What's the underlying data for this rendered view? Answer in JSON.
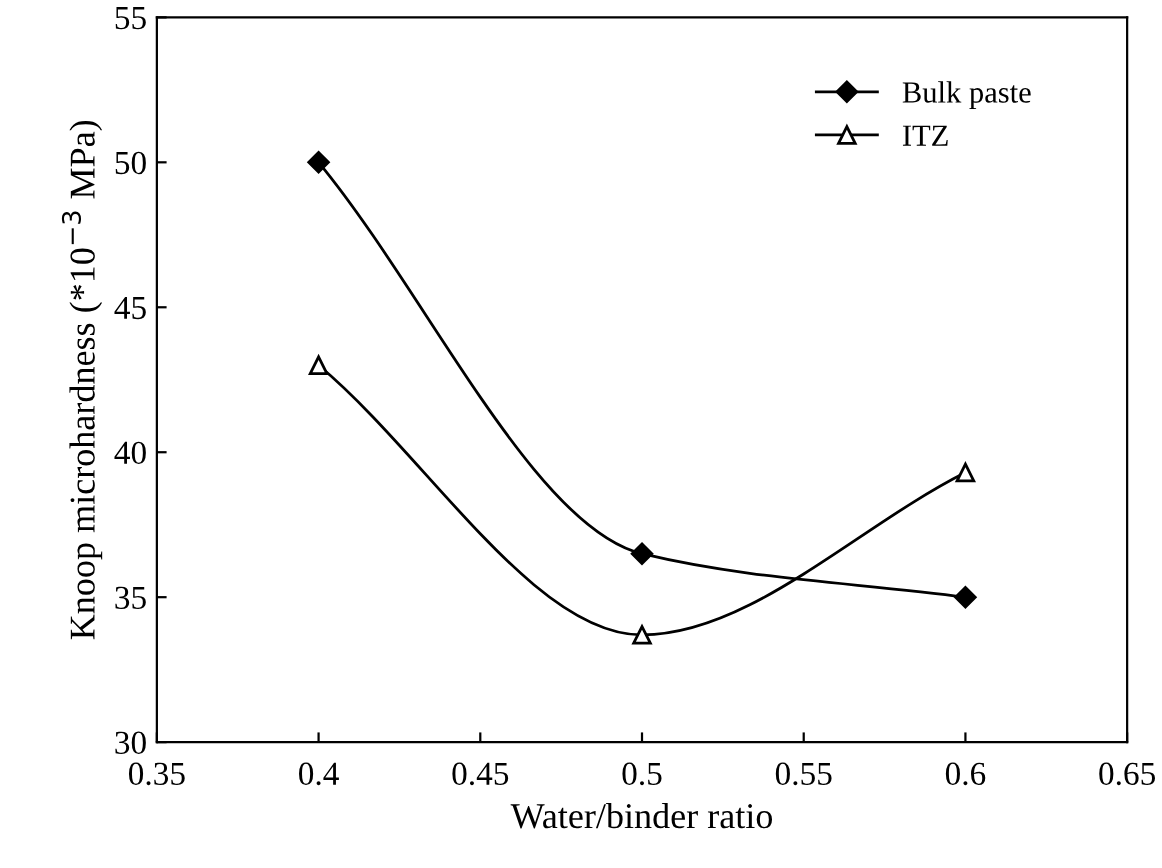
{
  "chart_data": {
    "type": "line",
    "xlabel": "Water/binder ratio",
    "ylabel": "Knoop microhardness (*10$^{−3}$ MPa)",
    "x": [
      0.4,
      0.5,
      0.6
    ],
    "series": [
      {
        "name": "Bulk paste",
        "color": "#000000",
        "marker": "diamond",
        "values": [
          50,
          36.5,
          35
        ]
      },
      {
        "name": "ITZ",
        "color": "#000000",
        "marker": "triangle",
        "values": [
          43,
          33.7,
          39.3
        ]
      }
    ],
    "xlim": [
      0.35,
      0.65
    ],
    "xticks": [
      0.35,
      0.4,
      0.45,
      0.5,
      0.55,
      0.6,
      0.65
    ],
    "ylim": [
      30,
      55
    ],
    "yticks": [
      30,
      35,
      40,
      45,
      50,
      55
    ],
    "legend": "top right",
    "line_style": "solid",
    "grid": false
  }
}
